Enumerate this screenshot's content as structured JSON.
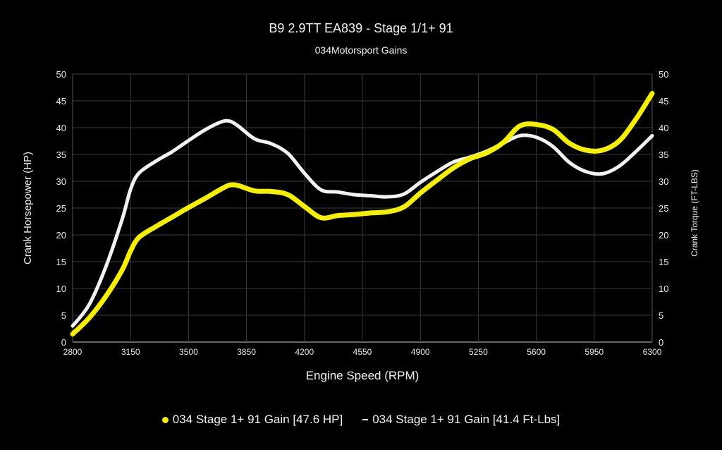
{
  "header": {
    "title": "B9 2.9TT EA839 - Stage 1/1+ 91",
    "subtitle": "034Motorsport Gains"
  },
  "legend": [
    {
      "label": "034 Stage 1+ 91  Gain [47.6 HP]",
      "marker": "dot",
      "color": "#f5f000"
    },
    {
      "label": "034 Stage 1+ 91 Gain [41.4 Ft-Lbs]",
      "marker": "dash",
      "color": "#f2f2f2"
    }
  ],
  "chart_data": {
    "type": "line",
    "title": "B9 2.9TT EA839 - Stage 1/1+ 91",
    "subtitle": "034Motorsport Gains",
    "xlabel": "Engine Speed (RPM)",
    "ylabel": "Crank Horsepower (HP)",
    "y2label": "Crank Torque (FT-LBS)",
    "xlim": [
      2800,
      6300
    ],
    "ylim": [
      0,
      50
    ],
    "y2lim": [
      0,
      50
    ],
    "x_ticks": [
      2800,
      3150,
      3500,
      3850,
      4200,
      4550,
      4900,
      5250,
      5600,
      5950,
      6300
    ],
    "y_ticks": [
      0,
      5,
      10,
      15,
      20,
      25,
      30,
      35,
      40,
      45,
      50
    ],
    "grid": true,
    "legend_position": "bottom",
    "background": "#000000",
    "x": [
      2800,
      2900,
      3000,
      3100,
      3150,
      3200,
      3300,
      3400,
      3500,
      3600,
      3700,
      3750,
      3800,
      3900,
      4000,
      4100,
      4200,
      4300,
      4400,
      4500,
      4600,
      4700,
      4800,
      4900,
      5000,
      5100,
      5200,
      5300,
      5400,
      5500,
      5600,
      5700,
      5800,
      5900,
      6000,
      6100,
      6200,
      6300
    ],
    "series": [
      {
        "name": "034 Stage 1+ 91  Gain [47.6 HP]",
        "axis": "left",
        "color": "#f5f000",
        "values": [
          1.5,
          4.5,
          8.5,
          13.5,
          17,
          19.5,
          21.5,
          23.3,
          25.1,
          26.8,
          28.6,
          29.3,
          29.2,
          28.2,
          28.1,
          27.5,
          25.3,
          23.2,
          23.6,
          23.8,
          24.1,
          24.3,
          25.2,
          27.8,
          30.2,
          32.5,
          34.2,
          35.3,
          37.2,
          40.3,
          40.6,
          39.7,
          37.1,
          35.8,
          35.8,
          37.5,
          41.5,
          46.4
        ]
      },
      {
        "name": "034 Stage 1+ 91 Gain [41.4 Ft-Lbs]",
        "axis": "right",
        "color": "#f2f2f2",
        "values": [
          3,
          7,
          14,
          23,
          28.5,
          31.5,
          33.7,
          35.5,
          37.6,
          39.6,
          41.1,
          41.2,
          40.3,
          37.9,
          37.0,
          35.2,
          31.5,
          28.4,
          28.0,
          27.5,
          27.3,
          27.1,
          27.6,
          29.8,
          31.8,
          33.6,
          34.5,
          35.6,
          37.1,
          38.5,
          38.2,
          36.5,
          33.5,
          31.8,
          31.4,
          32.8,
          35.5,
          38.5
        ]
      }
    ]
  }
}
